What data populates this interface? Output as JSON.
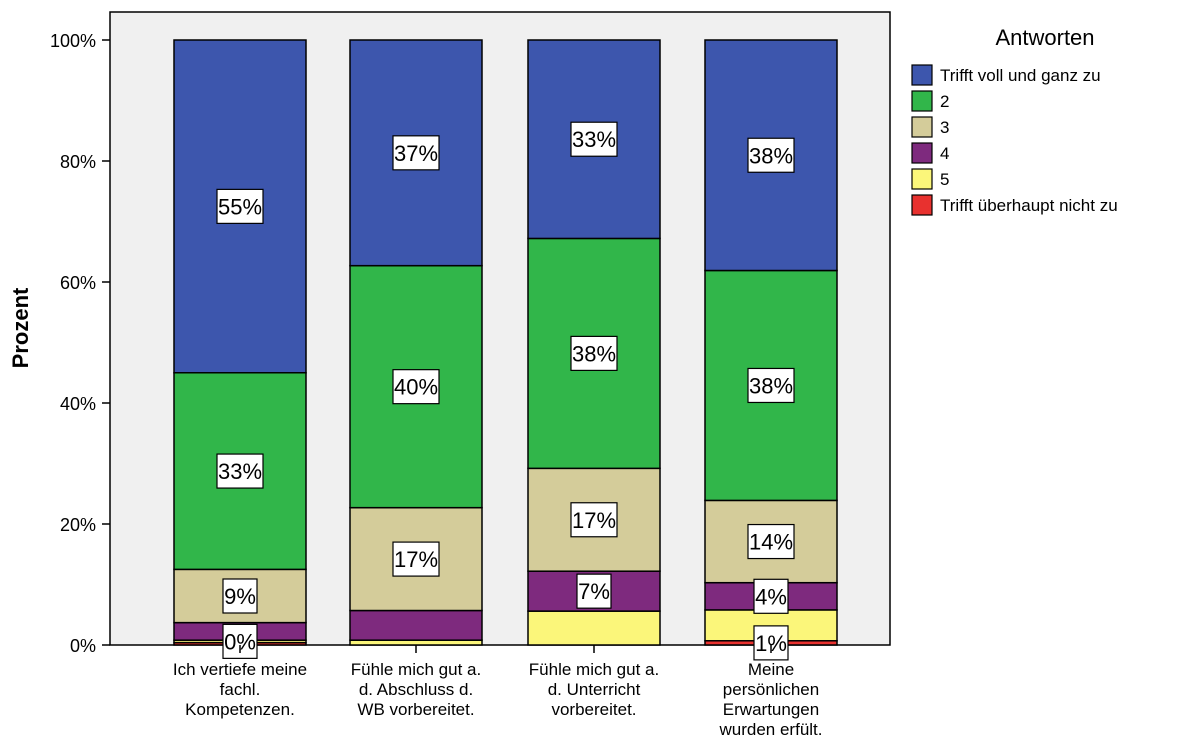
{
  "chart_data": {
    "type": "bar",
    "stacked": true,
    "ylabel": "Prozent",
    "ylim": [
      0,
      100
    ],
    "yticks": [
      "0%",
      "20%",
      "40%",
      "60%",
      "80%",
      "100%"
    ],
    "categories": [
      "Ich vertiefe meine fachl. Kompetenzen.",
      "Fühle mich gut a. d. Abschluss d. WB vorbereitet.",
      "Fühle mich gut a. d. Unterricht vorbereitet.",
      "Meine persönlichen Erwartungen wurden erfült."
    ],
    "category_lines": [
      [
        "Ich vertiefe meine",
        "fachl.",
        "Kompetenzen."
      ],
      [
        "Fühle mich gut a.",
        "d. Abschluss d.",
        "WB vorbereitet."
      ],
      [
        "Fühle mich gut a.",
        "d. Unterricht",
        "vorbereitet."
      ],
      [
        "Meine",
        "persönlichen",
        "Erwartungen",
        "wurden erfült."
      ]
    ],
    "legend_title": "Antworten",
    "legend_position": "right",
    "series": [
      {
        "name": "Trifft überhaupt nicht zu",
        "color": "#e8312f",
        "values": [
          0.4,
          0.0,
          0.0,
          0.7
        ],
        "labels": [
          "",
          "",
          "",
          "1%"
        ]
      },
      {
        "name": "5",
        "color": "#fbf67a",
        "values": [
          0.4,
          0.8,
          5.6,
          5.1
        ],
        "labels": [
          "0%",
          "",
          "",
          ""
        ]
      },
      {
        "name": "4",
        "color": "#7e2a7e",
        "values": [
          2.9,
          4.9,
          6.6,
          4.5
        ],
        "labels": [
          "",
          "",
          "7%",
          "4%"
        ]
      },
      {
        "name": "3",
        "color": "#d4cc9a",
        "values": [
          8.8,
          17.0,
          17.0,
          13.6
        ],
        "labels": [
          "9%",
          "17%",
          "17%",
          "14%"
        ]
      },
      {
        "name": "2",
        "color": "#31b64a",
        "values": [
          32.5,
          40.0,
          38.0,
          38.0
        ],
        "labels": [
          "33%",
          "40%",
          "38%",
          "38%"
        ]
      },
      {
        "name": "Trifft voll und ganz zu",
        "color": "#3d56ad",
        "values": [
          55.0,
          37.3,
          32.8,
          38.1
        ],
        "labels": [
          "55%",
          "37%",
          "33%",
          "38%"
        ]
      }
    ],
    "legend_order": [
      "Trifft voll und ganz zu",
      "2",
      "3",
      "4",
      "5",
      "Trifft überhaupt nicht zu"
    ],
    "plot_background": "#f0f0f0"
  }
}
